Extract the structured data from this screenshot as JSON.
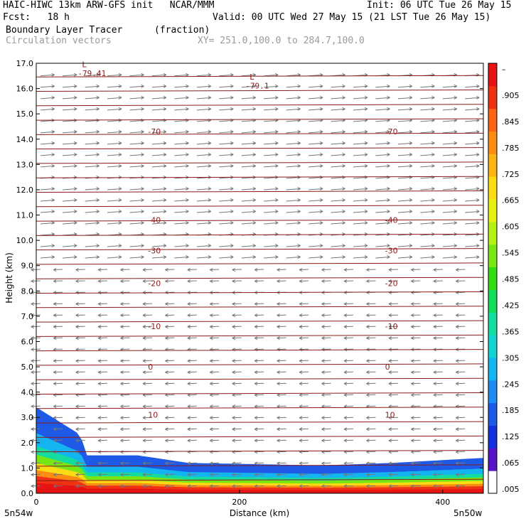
{
  "header": {
    "left_line1": "HAIC-HIWC 13km ARW-GFS init   NCAR/MMM",
    "right_line1": "Init: 06 UTC Tue 26 May 15",
    "left_line2": "Fcst:   18 h",
    "right_line2": "Valid: 00 UTC Wed 27 May 15 (21 LST Tue 26 May 15)",
    "field_name": "Boundary Layer Tracer",
    "field_units": "(fraction)",
    "vector_name": "Circulation vectors",
    "xy_range": "XY= 251.0,100.0 to 284.7,100.0"
  },
  "colors": {
    "contour": "#8b1a1a",
    "vector": "#777777",
    "colorbar": [
      "#ffffff",
      "#5a14c8",
      "#1432dc",
      "#1e5ae6",
      "#1e8cf0",
      "#14b4f0",
      "#14d2d2",
      "#14dca0",
      "#14dc5a",
      "#32dc14",
      "#78e614",
      "#b4f014",
      "#e6f014",
      "#fadc14",
      "#fab414",
      "#fa8c14",
      "#fa6414",
      "#f03214",
      "#e61414"
    ]
  },
  "chart_data": {
    "type": "heatmap",
    "xlabel": "Distance (km)",
    "ylabel": "Height (km)",
    "xlim": [
      0,
      440
    ],
    "ylim": [
      0,
      17
    ],
    "x_ticks": [
      0,
      200,
      400
    ],
    "x_tick_labels": [
      "0",
      "200",
      "400"
    ],
    "y_ticks": [
      0,
      1,
      2,
      3,
      4,
      5,
      6,
      7,
      8,
      9,
      10,
      11,
      12,
      13,
      14,
      15,
      16,
      17
    ],
    "y_tick_labels": [
      "0.0",
      "1.0",
      "2.0",
      "3.0",
      "4.0",
      "5.0",
      "6.0",
      "7.0",
      "8.0",
      "9.0",
      "10.0",
      "11.0",
      "12.0",
      "13.0",
      "14.0",
      "15.0",
      "16.0",
      "17.0"
    ],
    "x_endpoint_labels": [
      "5n54w",
      "5n50w"
    ],
    "colorbar_labels": [
      ".005",
      ".065",
      ".125",
      ".185",
      ".245",
      ".305",
      ".365",
      ".425",
      ".485",
      ".545",
      ".605",
      ".665",
      ".725",
      ".785",
      ".845",
      ".905",
      "–"
    ],
    "tracer_top_km": [
      [
        0,
        3.4
      ],
      [
        20,
        2.9
      ],
      [
        40,
        2.4
      ],
      [
        55,
        1.5
      ],
      [
        100,
        1.5
      ],
      [
        150,
        1.2
      ],
      [
        220,
        1.15
      ],
      [
        280,
        1.1
      ],
      [
        350,
        1.2
      ],
      [
        440,
        1.4
      ]
    ],
    "temperature_contours": [
      {
        "label": "10",
        "height_km": 3.1
      },
      {
        "label": "0",
        "height_km": 5.0
      },
      {
        "label": "-10",
        "height_km": 6.6
      },
      {
        "label": "-20",
        "height_km": 8.3
      },
      {
        "label": "-30",
        "height_km": 9.6
      },
      {
        "label": "-40",
        "height_km": 10.8
      },
      {
        "label": "-70",
        "height_km": 14.3
      }
    ],
    "min_labels": [
      {
        "label": "-79.41",
        "x_km": 45,
        "height_km": 16.6
      },
      {
        "label": "-79.1",
        "x_km": 210,
        "height_km": 16.1
      }
    ]
  }
}
